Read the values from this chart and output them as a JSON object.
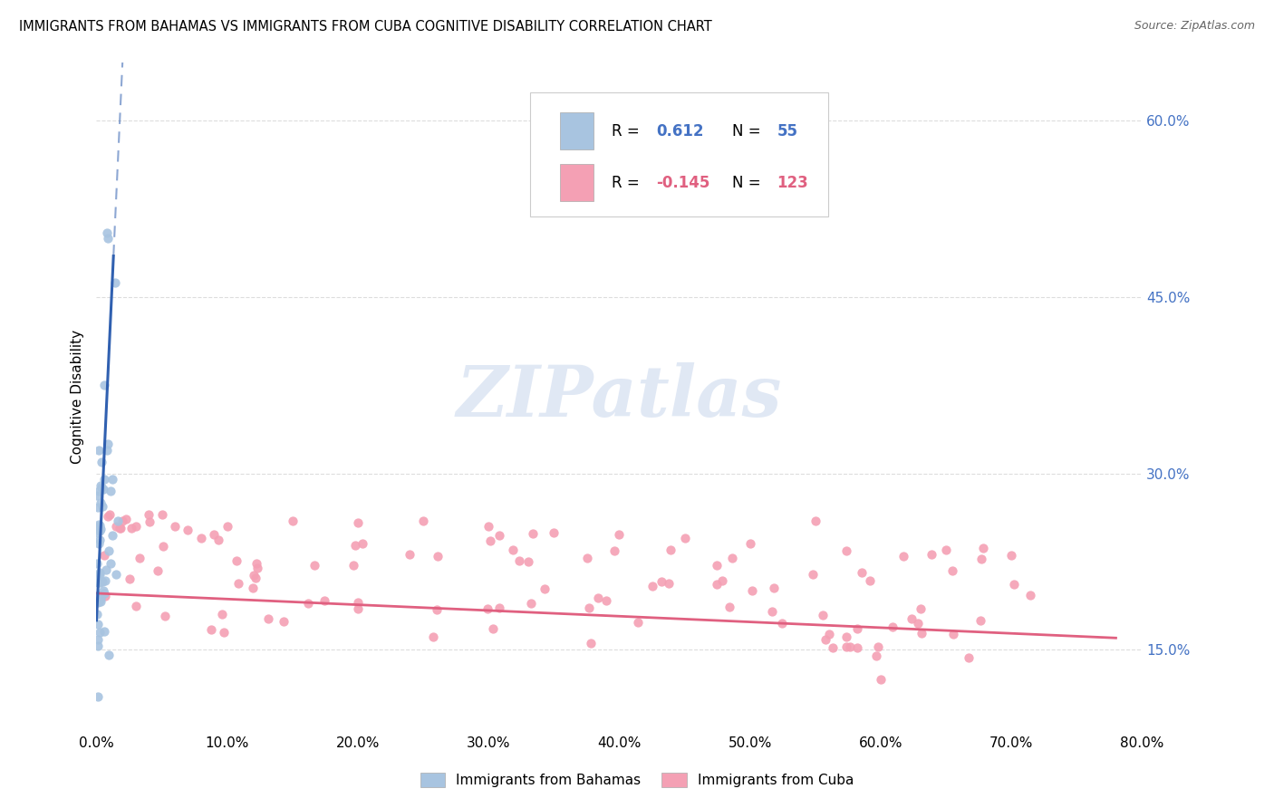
{
  "title": "IMMIGRANTS FROM BAHAMAS VS IMMIGRANTS FROM CUBA COGNITIVE DISABILITY CORRELATION CHART",
  "source": "Source: ZipAtlas.com",
  "ylabel": "Cognitive Disability",
  "legend_label1": "Immigrants from Bahamas",
  "legend_label2": "Immigrants from Cuba",
  "bahamas_color": "#a8c4e0",
  "cuba_color": "#f4a0b4",
  "bahamas_line_color": "#3060b0",
  "cuba_line_color": "#e06080",
  "x_min": 0.0,
  "x_max": 0.8,
  "y_min": 0.08,
  "y_max": 0.65,
  "y_ticks": [
    0.15,
    0.3,
    0.45,
    0.6
  ],
  "y_tick_labels": [
    "15.0%",
    "30.0%",
    "45.0%",
    "60.0%"
  ],
  "x_ticks": [
    0.0,
    0.1,
    0.2,
    0.3,
    0.4,
    0.5,
    0.6,
    0.7,
    0.8
  ],
  "x_tick_labels": [
    "0.0%",
    "10.0%",
    "20.0%",
    "30.0%",
    "40.0%",
    "50.0%",
    "60.0%",
    "70.0%",
    "80.0%"
  ],
  "watermark": "ZIPatlas",
  "background_color": "#ffffff",
  "grid_color": "#dddddd",
  "right_tick_color": "#4472c4"
}
